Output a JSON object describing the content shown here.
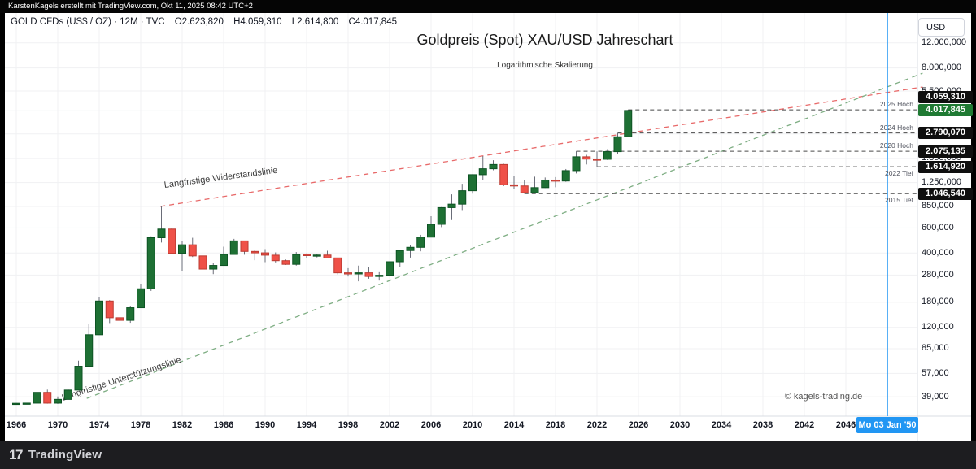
{
  "attribution": {
    "text": "KarstenKagels erstellt mit TradingView.com, Okt 11, 2025 08:42 UTC+2"
  },
  "symbol_header": {
    "legend": "GOLD CFDs (US$ / OZ) · 12M · TVC",
    "open": "O2.623,820",
    "high": "H4.059,310",
    "low": "L2.614,800",
    "close": "C4.017,845"
  },
  "titles": {
    "main": "Goldpreis (Spot) XAU/USD Jahreschart",
    "subtitle": "Logarithmische Skalierung",
    "copyright": "© kagels-trading.de"
  },
  "price_scale": {
    "currency": "USD",
    "ticks": [
      {
        "label": "12.000,000",
        "value": 12000
      },
      {
        "label": "8.000,000",
        "value": 8000
      },
      {
        "label": "5.500,000",
        "value": 5500
      },
      {
        "label": "4.000,000",
        "value": 4000,
        "label_hidden": true
      },
      {
        "label": "2.750,000",
        "value": 2750,
        "label_hidden": true
      },
      {
        "label": "1.850,000",
        "value": 1850
      },
      {
        "label": "1.250,000",
        "value": 1250
      },
      {
        "label": "850,000",
        "value": 850
      },
      {
        "label": "600,000",
        "value": 600
      },
      {
        "label": "400,000",
        "value": 400
      },
      {
        "label": "280,000",
        "value": 280
      },
      {
        "label": "180,000",
        "value": 180
      },
      {
        "label": "120,000",
        "value": 120
      },
      {
        "label": "85,000",
        "value": 85
      },
      {
        "label": "57,000",
        "value": 57
      },
      {
        "label": "39,000",
        "value": 39
      }
    ],
    "badges": [
      {
        "text": "4.059,310",
        "value": 4059.31,
        "variant": "level"
      },
      {
        "text": "4.017,845",
        "value": 4017.845,
        "variant": "last"
      },
      {
        "text": "2.790,070",
        "value": 2790.07,
        "variant": "level"
      },
      {
        "text": "2.075,135",
        "value": 2075.135,
        "variant": "level"
      },
      {
        "text": "1.614,920",
        "value": 1614.92,
        "variant": "level"
      },
      {
        "text": "1.046,540",
        "value": 1046.54,
        "variant": "level"
      }
    ]
  },
  "time_scale": {
    "tick_years": [
      1966,
      1970,
      1974,
      1978,
      1982,
      1986,
      1990,
      1994,
      1998,
      2002,
      2006,
      2010,
      2014,
      2018,
      2022,
      2026,
      2030,
      2034,
      2038,
      2042,
      2046
    ],
    "marker_label": "Mo 03 Jan '50",
    "marker_year": 2050
  },
  "footer": {
    "logo_mark": "17",
    "brand": "TradingView"
  },
  "colors": {
    "up_fill": "#1e7034",
    "up_stroke": "#0d5323",
    "down_fill": "#ef5148",
    "down_stroke": "#bb3b32",
    "wick": "#6a6d78",
    "grid": "#f0f1f3",
    "axis_line": "#d9dce3",
    "resistance": "#e86a6a",
    "support": "#7fae84",
    "level_line": "#4a4a4a",
    "accent_blue": "#2196f3",
    "badge_black": "#0f0f0f",
    "badge_green": "#1f7a33",
    "trend_label": "#3c3c3c"
  },
  "chart_data": {
    "type": "candlestick",
    "symbol": "GOLD CFDs (US$ / OZ)",
    "interval": "12M",
    "y_scale": "log",
    "y_range_labels": [
      39,
      12000
    ],
    "candles": [
      [
        1966,
        35.1,
        35.3,
        34.9,
        35.1
      ],
      [
        1967,
        35.2,
        35.4,
        35.0,
        35.2
      ],
      [
        1968,
        35.2,
        42.6,
        35.0,
        41.9
      ],
      [
        1969,
        41.9,
        43.8,
        34.9,
        35.2
      ],
      [
        1970,
        35.2,
        39.2,
        34.8,
        37.4
      ],
      [
        1971,
        37.4,
        43.9,
        37.3,
        43.5
      ],
      [
        1972,
        43.5,
        70.0,
        43.4,
        64.0
      ],
      [
        1973,
        64.0,
        127.0,
        63.9,
        106.5
      ],
      [
        1974,
        106.5,
        195.5,
        106.0,
        183.9
      ],
      [
        1975,
        183.9,
        186.5,
        128.7,
        140.3
      ],
      [
        1976,
        140.3,
        141.0,
        103.0,
        134.5
      ],
      [
        1977,
        134.5,
        168.5,
        129.3,
        165.0
      ],
      [
        1978,
        165.0,
        243.5,
        164.9,
        224.1
      ],
      [
        1979,
        224.1,
        524.0,
        216.5,
        512.0
      ],
      [
        1980,
        512.0,
        850.0,
        474.0,
        589.5
      ],
      [
        1981,
        589.5,
        599.5,
        391.2,
        397.5
      ],
      [
        1982,
        397.5,
        488.5,
        296.7,
        456.9
      ],
      [
        1983,
        456.9,
        511.5,
        374.7,
        381.5
      ],
      [
        1984,
        381.5,
        407.0,
        303.2,
        308.3
      ],
      [
        1985,
        308.3,
        341.0,
        284.2,
        327.0
      ],
      [
        1986,
        327.0,
        442.7,
        326.2,
        390.9
      ],
      [
        1987,
        390.9,
        502.7,
        390.0,
        486.5
      ],
      [
        1988,
        486.5,
        487.0,
        389.0,
        410.3
      ],
      [
        1989,
        410.3,
        417.3,
        355.7,
        401.0
      ],
      [
        1990,
        401.0,
        425.7,
        345.0,
        386.2
      ],
      [
        1991,
        386.2,
        403.7,
        343.5,
        353.2
      ],
      [
        1992,
        353.2,
        359.5,
        330.2,
        333.0
      ],
      [
        1993,
        333.0,
        406.2,
        326.0,
        390.7
      ],
      [
        1994,
        390.7,
        397.5,
        369.6,
        383.3
      ],
      [
        1995,
        383.3,
        396.1,
        372.4,
        387.0
      ],
      [
        1996,
        387.0,
        414.7,
        367.4,
        369.3
      ],
      [
        1997,
        369.3,
        369.8,
        283.0,
        290.2
      ],
      [
        1998,
        290.2,
        313.1,
        273.4,
        288.0
      ],
      [
        1999,
        288.0,
        326.2,
        252.8,
        290.3
      ],
      [
        2000,
        290.3,
        316.5,
        263.8,
        273.6
      ],
      [
        2001,
        273.6,
        293.2,
        256.0,
        279.0
      ],
      [
        2002,
        279.0,
        349.2,
        277.4,
        347.2
      ],
      [
        2003,
        347.2,
        416.7,
        319.9,
        416.3
      ],
      [
        2004,
        416.3,
        454.1,
        371.2,
        438.4
      ],
      [
        2005,
        438.4,
        536.5,
        411.1,
        517.0
      ],
      [
        2006,
        517.0,
        725.0,
        516.7,
        636.3
      ],
      [
        2007,
        636.3,
        841.0,
        608.3,
        833.8
      ],
      [
        2008,
        833.8,
        1032.6,
        681.4,
        881.9
      ],
      [
        2009,
        881.9,
        1226.3,
        801.5,
        1096.2
      ],
      [
        2010,
        1096.2,
        1430.8,
        1044.5,
        1421.1
      ],
      [
        2011,
        1421.1,
        1921.2,
        1307.3,
        1563.7
      ],
      [
        2012,
        1563.7,
        1796.0,
        1527.0,
        1675.8
      ],
      [
        2013,
        1675.8,
        1696.2,
        1180.2,
        1205.5
      ],
      [
        2014,
        1205.5,
        1388.4,
        1131.8,
        1184.4
      ],
      [
        2015,
        1184.4,
        1307.0,
        1046.54,
        1061.4
      ],
      [
        2016,
        1061.4,
        1375.1,
        1060.9,
        1152.3
      ],
      [
        2017,
        1152.3,
        1357.5,
        1146.2,
        1303.1
      ],
      [
        2018,
        1303.1,
        1366.0,
        1160.2,
        1282.5
      ],
      [
        2019,
        1282.5,
        1557.0,
        1266.2,
        1517.3
      ],
      [
        2020,
        1517.3,
        2075.135,
        1451.0,
        1898.4
      ],
      [
        2021,
        1898.4,
        1959.1,
        1676.8,
        1829.2
      ],
      [
        2022,
        1829.2,
        2070.4,
        1614.92,
        1824.0
      ],
      [
        2023,
        1824.0,
        2146.7,
        1804.4,
        2062.9
      ],
      [
        2024,
        2062.9,
        2790.07,
        1984.0,
        2624.6
      ],
      [
        2025,
        2623.82,
        4059.31,
        2614.8,
        4017.845
      ]
    ],
    "levels": [
      {
        "label": "2025 Hoch",
        "price": 4059.31,
        "from_year": 2025,
        "side": "above"
      },
      {
        "label": "2024 Hoch",
        "price": 2790.07,
        "from_year": 2024,
        "side": "above"
      },
      {
        "label": "2020 Hoch",
        "price": 2075.135,
        "from_year": 2020,
        "side": "above"
      },
      {
        "label": "2022 Tief",
        "price": 1614.92,
        "from_year": 2022,
        "side": "below"
      },
      {
        "label": "2015 Tief",
        "price": 1046.54,
        "from_year": 2015,
        "side": "below"
      }
    ],
    "trendlines": [
      {
        "label": "Langfristige Widerstandslinie",
        "kind": "resistance",
        "from_year": 1979.9,
        "from_price": 850,
        "to_year": 2053.4,
        "to_price": 5880,
        "label_year": 1980.3,
        "label_price": 1150,
        "label_angle": -7.5
      },
      {
        "label": "Langfristige Unterstützungslinie",
        "kind": "support",
        "from_year": 1972.8,
        "from_price": 38,
        "to_year": 2053.4,
        "to_price": 7350,
        "label_year": 1970.5,
        "label_price": 36.6,
        "label_angle": -18
      }
    ],
    "current_time_marker": {
      "year": 2050,
      "label": "Mo 03 Jan '50"
    }
  }
}
